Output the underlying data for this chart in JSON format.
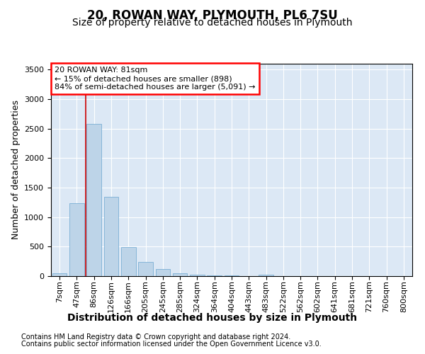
{
  "title1": "20, ROWAN WAY, PLYMOUTH, PL6 7SU",
  "title2": "Size of property relative to detached houses in Plymouth",
  "xlabel": "Distribution of detached houses by size in Plymouth",
  "ylabel": "Number of detached properties",
  "categories": [
    "7sqm",
    "47sqm",
    "86sqm",
    "126sqm",
    "166sqm",
    "205sqm",
    "245sqm",
    "285sqm",
    "324sqm",
    "364sqm",
    "404sqm",
    "443sqm",
    "483sqm",
    "522sqm",
    "562sqm",
    "602sqm",
    "641sqm",
    "681sqm",
    "721sqm",
    "760sqm",
    "800sqm"
  ],
  "values": [
    50,
    1240,
    2580,
    1340,
    490,
    235,
    115,
    50,
    30,
    15,
    10,
    5,
    20,
    0,
    0,
    0,
    0,
    0,
    0,
    0,
    0
  ],
  "bar_color": "#bdd4e8",
  "bar_edge_color": "#7aafd4",
  "vline_color": "#cc0000",
  "vline_x": 1.5,
  "annotation_line1": "20 ROWAN WAY: 81sqm",
  "annotation_line2": "← 15% of detached houses are smaller (898)",
  "annotation_line3": "84% of semi-detached houses are larger (5,091) →",
  "ylim_max": 3600,
  "yticks": [
    0,
    500,
    1000,
    1500,
    2000,
    2500,
    3000,
    3500
  ],
  "footnote1": "Contains HM Land Registry data © Crown copyright and database right 2024.",
  "footnote2": "Contains public sector information licensed under the Open Government Licence v3.0.",
  "plot_bg_color": "#dce8f5",
  "fig_bg_color": "#ffffff",
  "title1_fontsize": 12,
  "title2_fontsize": 10,
  "xlabel_fontsize": 10,
  "ylabel_fontsize": 9,
  "tick_fontsize": 8,
  "annot_fontsize": 8,
  "footnote_fontsize": 7
}
